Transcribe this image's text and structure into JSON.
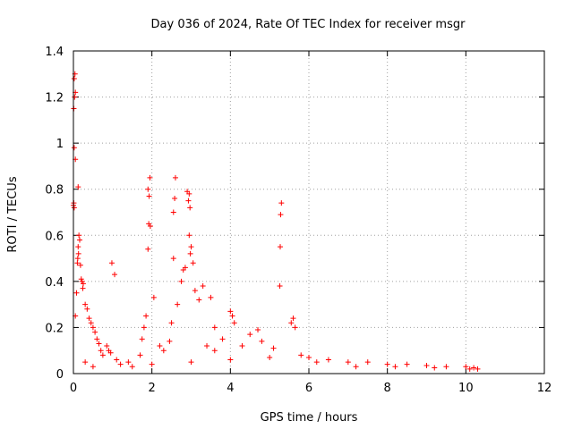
{
  "chart_data": {
    "type": "scatter",
    "title": "Day 036 of 2024, Rate Of TEC Index for receiver msgr",
    "xlabel": "GPS time / hours",
    "ylabel": "ROTI / TECUs",
    "xlim": [
      0,
      12
    ],
    "ylim": [
      0,
      1.4
    ],
    "x_ticks": [
      0,
      2,
      4,
      6,
      8,
      10,
      12
    ],
    "x_tick_labels": [
      "0",
      "2",
      "4",
      "6",
      "8",
      "10",
      "12"
    ],
    "y_ticks": [
      0,
      0.2,
      0.4,
      0.6,
      0.8,
      1.0,
      1.2,
      1.4
    ],
    "y_tick_labels": [
      "0",
      "0.2",
      "0.4",
      "0.6",
      "0.8",
      "1",
      "1.2",
      "1.4"
    ],
    "grid": true,
    "marker": "+",
    "color": "#ff0000",
    "series": [
      {
        "name": "ROTI",
        "points": [
          [
            0.02,
            1.28
          ],
          [
            0.04,
            1.3
          ],
          [
            0.05,
            1.22
          ],
          [
            0.03,
            1.2
          ],
          [
            0.01,
            1.15
          ],
          [
            0.02,
            0.98
          ],
          [
            0.05,
            0.93
          ],
          [
            0.12,
            0.81
          ],
          [
            0.01,
            0.74
          ],
          [
            0.02,
            0.72
          ],
          [
            0.0,
            0.73
          ],
          [
            0.14,
            0.6
          ],
          [
            0.16,
            0.58
          ],
          [
            0.12,
            0.55
          ],
          [
            0.13,
            0.52
          ],
          [
            0.11,
            0.5
          ],
          [
            0.1,
            0.48
          ],
          [
            0.18,
            0.47
          ],
          [
            0.2,
            0.41
          ],
          [
            0.22,
            0.4
          ],
          [
            0.25,
            0.39
          ],
          [
            0.24,
            0.37
          ],
          [
            0.08,
            0.35
          ],
          [
            0.3,
            0.3
          ],
          [
            0.05,
            0.25
          ],
          [
            0.35,
            0.28
          ],
          [
            0.4,
            0.24
          ],
          [
            0.45,
            0.22
          ],
          [
            0.5,
            0.2
          ],
          [
            0.55,
            0.18
          ],
          [
            0.6,
            0.15
          ],
          [
            0.65,
            0.13
          ],
          [
            0.7,
            0.1
          ],
          [
            0.75,
            0.08
          ],
          [
            0.85,
            0.12
          ],
          [
            0.9,
            0.1
          ],
          [
            0.95,
            0.09
          ],
          [
            0.98,
            0.48
          ],
          [
            1.05,
            0.43
          ],
          [
            1.1,
            0.06
          ],
          [
            1.5,
            0.03
          ],
          [
            1.75,
            0.15
          ],
          [
            1.8,
            0.2
          ],
          [
            1.85,
            0.25
          ],
          [
            1.9,
            0.8
          ],
          [
            1.93,
            0.77
          ],
          [
            1.95,
            0.85
          ],
          [
            1.92,
            0.65
          ],
          [
            1.96,
            0.64
          ],
          [
            1.9,
            0.54
          ],
          [
            2.05,
            0.33
          ],
          [
            2.2,
            0.12
          ],
          [
            2.3,
            0.1
          ],
          [
            2.45,
            0.14
          ],
          [
            2.5,
            0.22
          ],
          [
            2.55,
            0.5
          ],
          [
            2.6,
            0.85
          ],
          [
            2.58,
            0.76
          ],
          [
            2.55,
            0.7
          ],
          [
            2.65,
            0.3
          ],
          [
            2.75,
            0.4
          ],
          [
            2.8,
            0.45
          ],
          [
            2.85,
            0.46
          ],
          [
            2.9,
            0.79
          ],
          [
            2.95,
            0.78
          ],
          [
            2.93,
            0.75
          ],
          [
            2.97,
            0.72
          ],
          [
            2.95,
            0.6
          ],
          [
            3.0,
            0.55
          ],
          [
            2.98,
            0.52
          ],
          [
            3.05,
            0.48
          ],
          [
            3.1,
            0.36
          ],
          [
            3.2,
            0.32
          ],
          [
            3.3,
            0.38
          ],
          [
            3.5,
            0.33
          ],
          [
            3.6,
            0.2
          ],
          [
            4.0,
            0.27
          ],
          [
            4.05,
            0.25
          ],
          [
            4.1,
            0.22
          ],
          [
            5.3,
            0.74
          ],
          [
            5.28,
            0.69
          ],
          [
            5.27,
            0.55
          ],
          [
            5.26,
            0.38
          ],
          [
            5.6,
            0.24
          ],
          [
            5.55,
            0.22
          ],
          [
            5.65,
            0.2
          ],
          [
            4.5,
            0.17
          ],
          [
            4.7,
            0.19
          ],
          [
            6.0,
            0.07
          ],
          [
            6.5,
            0.06
          ],
          [
            7.0,
            0.05
          ],
          [
            7.5,
            0.05
          ],
          [
            8.0,
            0.04
          ],
          [
            8.5,
            0.04
          ],
          [
            9.0,
            0.035
          ],
          [
            9.5,
            0.03
          ],
          [
            10.0,
            0.03
          ],
          [
            10.2,
            0.025
          ],
          [
            10.3,
            0.02
          ],
          [
            3.8,
            0.15
          ],
          [
            4.3,
            0.12
          ],
          [
            4.8,
            0.14
          ],
          [
            5.1,
            0.11
          ],
          [
            5.8,
            0.08
          ],
          [
            1.2,
            0.04
          ],
          [
            1.4,
            0.05
          ],
          [
            0.5,
            0.03
          ],
          [
            0.3,
            0.05
          ],
          [
            2.0,
            0.04
          ],
          [
            3.0,
            0.05
          ],
          [
            4.0,
            0.06
          ],
          [
            5.0,
            0.07
          ],
          [
            6.2,
            0.05
          ],
          [
            7.2,
            0.03
          ],
          [
            8.2,
            0.03
          ],
          [
            9.2,
            0.025
          ],
          [
            10.1,
            0.02
          ],
          [
            3.4,
            0.12
          ],
          [
            3.6,
            0.1
          ],
          [
            1.7,
            0.08
          ]
        ]
      }
    ]
  }
}
